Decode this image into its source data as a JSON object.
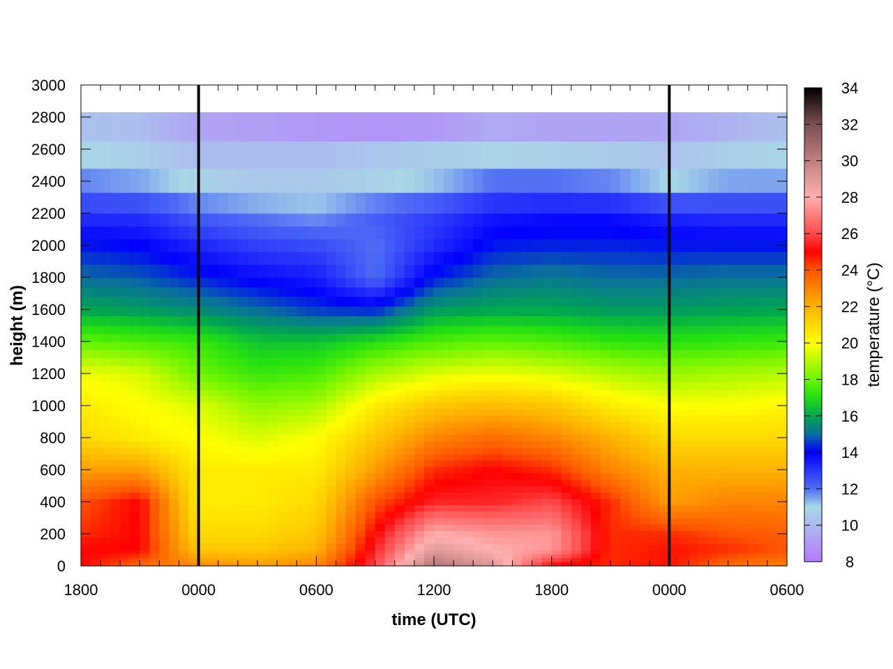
{
  "chart_data": {
    "type": "heatmap",
    "title": "",
    "xlabel": "time (UTC)",
    "ylabel": "height (m)",
    "colorbar_label": "temperature (°C)",
    "x_tick_labels": [
      "1800",
      "0000",
      "0600",
      "1200",
      "1800",
      "0000",
      "0600"
    ],
    "x_hours": [
      0,
      6,
      12,
      18,
      24,
      30,
      36
    ],
    "xlim_hours": [
      0,
      36
    ],
    "y_ticks": [
      0,
      200,
      400,
      600,
      800,
      1000,
      1200,
      1400,
      1600,
      1800,
      2000,
      2200,
      2400,
      2600,
      2800,
      3000
    ],
    "ylim": [
      0,
      3000
    ],
    "data_top_height": 2830,
    "colorbar_ticks": [
      8,
      10,
      12,
      14,
      16,
      18,
      20,
      22,
      24,
      26,
      28,
      30,
      32,
      34
    ],
    "clim": [
      8,
      34
    ],
    "colormap": [
      {
        "t": 8,
        "color": "#b57bff"
      },
      {
        "t": 11,
        "color": "#a8d8e6"
      },
      {
        "t": 12,
        "color": "#4f6df5"
      },
      {
        "t": 14,
        "color": "#0000ff"
      },
      {
        "t": 15,
        "color": "#0a6f9e"
      },
      {
        "t": 16,
        "color": "#00a650"
      },
      {
        "t": 17,
        "color": "#22e011"
      },
      {
        "t": 18,
        "color": "#6cf500"
      },
      {
        "t": 20,
        "color": "#ffff00"
      },
      {
        "t": 22,
        "color": "#ffb300"
      },
      {
        "t": 24,
        "color": "#ff5500"
      },
      {
        "t": 25,
        "color": "#ff0000"
      },
      {
        "t": 26,
        "color": "#ff4a4a"
      },
      {
        "t": 28,
        "color": "#ffb0b0"
      },
      {
        "t": 30,
        "color": "#c08080"
      },
      {
        "t": 32,
        "color": "#7a5050"
      },
      {
        "t": 34,
        "color": "#000000"
      }
    ],
    "vertical_markers_hours": [
      6,
      30
    ],
    "time_hours": [
      0,
      3,
      6,
      9,
      12,
      15,
      18,
      21,
      24,
      27,
      30,
      33,
      36
    ],
    "heights": [
      0,
      100,
      200,
      400,
      600,
      800,
      1000,
      1200,
      1400,
      1600,
      1800,
      2000,
      2200,
      2400,
      2600,
      2800
    ],
    "temperature": [
      [
        25.0,
        23.5,
        23.0,
        22.5,
        23.0,
        26.0,
        30.5,
        29.0,
        25.0,
        24.5,
        24.8,
        23.5,
        23.0
      ],
      [
        25.0,
        25.0,
        21.5,
        21.5,
        22.0,
        25.5,
        29.0,
        28.0,
        27.5,
        24.5,
        24.8,
        24.5,
        24.0
      ],
      [
        24.5,
        25.0,
        21.0,
        21.0,
        21.5,
        25.0,
        28.0,
        27.5,
        27.5,
        24.5,
        24.5,
        24.0,
        23.8
      ],
      [
        24.0,
        25.0,
        20.5,
        20.5,
        21.0,
        24.0,
        25.5,
        25.5,
        26.0,
        24.5,
        22.5,
        23.0,
        23.0
      ],
      [
        22.5,
        22.5,
        20.5,
        20.5,
        20.5,
        22.5,
        24.5,
        25.0,
        24.5,
        23.0,
        22.0,
        22.0,
        22.0
      ],
      [
        21.0,
        20.5,
        20.0,
        19.5,
        20.0,
        21.5,
        23.0,
        23.5,
        23.0,
        22.0,
        21.0,
        21.0,
        21.0
      ],
      [
        20.5,
        20.0,
        19.5,
        18.5,
        18.8,
        20.5,
        21.5,
        21.8,
        21.5,
        20.5,
        20.0,
        20.0,
        20.2
      ],
      [
        19.8,
        19.5,
        18.0,
        17.3,
        17.5,
        18.8,
        19.5,
        19.8,
        19.5,
        19.0,
        18.6,
        18.8,
        19.0
      ],
      [
        17.8,
        17.6,
        17.3,
        16.5,
        16.5,
        17.0,
        17.6,
        17.8,
        17.6,
        17.2,
        17.1,
        17.2,
        17.3
      ],
      [
        16.0,
        15.8,
        15.5,
        15.0,
        14.5,
        14.3,
        15.8,
        16.0,
        16.0,
        15.8,
        15.8,
        15.9,
        16.0
      ],
      [
        15.0,
        14.8,
        14.3,
        13.8,
        13.5,
        12.0,
        14.2,
        15.0,
        15.2,
        15.0,
        15.0,
        15.1,
        15.1
      ],
      [
        14.2,
        14.0,
        13.3,
        12.8,
        12.6,
        12.0,
        13.2,
        14.2,
        14.3,
        14.3,
        14.2,
        14.2,
        14.2
      ],
      [
        13.0,
        13.0,
        12.2,
        11.8,
        11.5,
        12.3,
        12.8,
        13.5,
        13.7,
        13.7,
        13.2,
        13.0,
        13.0
      ],
      [
        11.8,
        11.5,
        10.8,
        10.5,
        10.5,
        10.8,
        11.2,
        12.0,
        12.0,
        11.8,
        11.0,
        11.5,
        11.5
      ],
      [
        10.8,
        10.5,
        10.0,
        10.0,
        10.0,
        10.3,
        10.5,
        10.6,
        10.5,
        10.3,
        10.2,
        10.5,
        10.8
      ],
      [
        10.0,
        10.0,
        9.0,
        8.8,
        8.5,
        8.2,
        8.3,
        9.0,
        8.8,
        8.8,
        9.0,
        9.5,
        10.0
      ]
    ]
  }
}
